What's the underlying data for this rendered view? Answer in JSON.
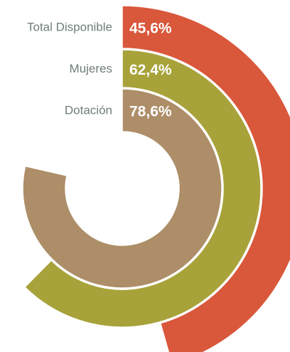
{
  "chart_data": {
    "type": "radial_bar",
    "categories": [
      "Total Disponible",
      "Mujeres",
      "Dotación"
    ],
    "values": [
      45.6,
      62.4,
      78.6
    ],
    "value_labels": [
      "45,6%",
      "62,4%",
      "78,6%"
    ],
    "colors": [
      "#d9573b",
      "#a8a23a",
      "#ad8e68"
    ],
    "ylim": [
      0,
      100
    ]
  }
}
